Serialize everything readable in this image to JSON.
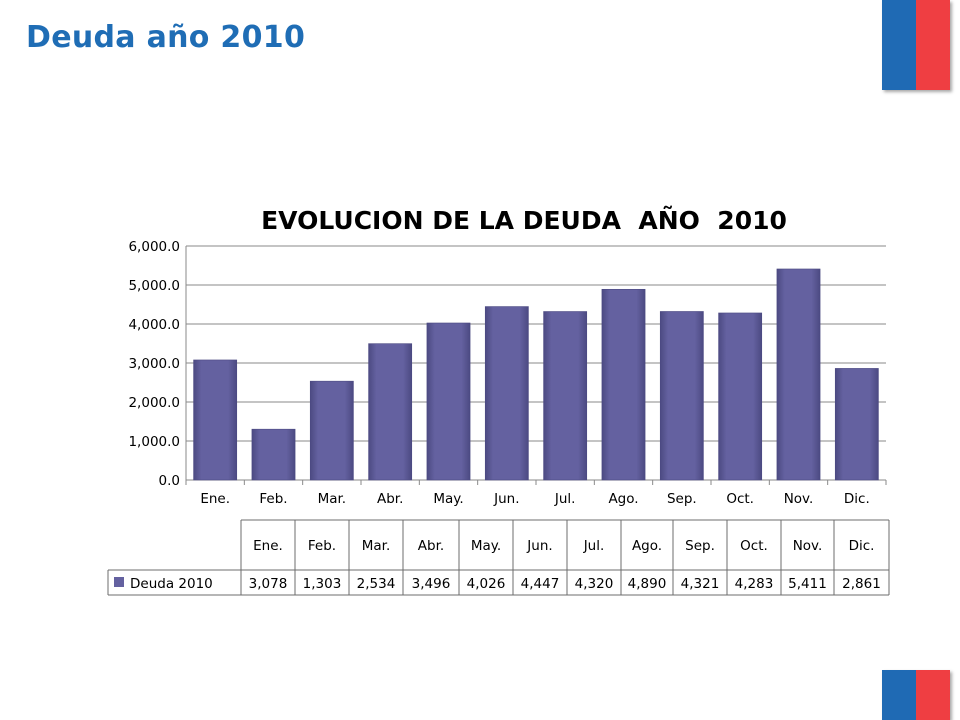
{
  "slide_title": "Deuda año 2010",
  "colors": {
    "title": "#1f6db5",
    "flag_blue": "#1f6ab4",
    "flag_red": "#ef3e42",
    "bar": "#6461a0",
    "bar_dark": "#4c4a82",
    "grid": "#8a8a8a"
  },
  "chart_data": {
    "type": "bar",
    "title": "EVOLUCION DE LA DEUDA  AÑO  2010",
    "categories": [
      "Ene.",
      "Feb.",
      "Mar.",
      "Abr.",
      "May.",
      "Jun.",
      "Jul.",
      "Ago.",
      "Sep.",
      "Oct.",
      "Nov.",
      "Dic."
    ],
    "series": [
      {
        "name": "Deuda 2010",
        "values": [
          3078,
          1303,
          2534,
          3496,
          4026,
          4447,
          4320,
          4890,
          4321,
          4283,
          5411,
          2861
        ],
        "table_labels": [
          "3,078",
          "1,303",
          "2,534",
          "3,496",
          "4,026",
          "4,447",
          "4,320",
          "4,890",
          "4,321",
          "4,283",
          "5,411",
          "2,861"
        ]
      }
    ],
    "ylim": [
      0,
      6000
    ],
    "yticks": [
      0,
      1000,
      2000,
      3000,
      4000,
      5000,
      6000
    ],
    "ytick_labels": [
      "0.0",
      "1,000.0",
      "2,000.0",
      "3,000.0",
      "4,000.0",
      "5,000.0",
      "6,000.0"
    ],
    "grid": true,
    "data_table": true
  }
}
